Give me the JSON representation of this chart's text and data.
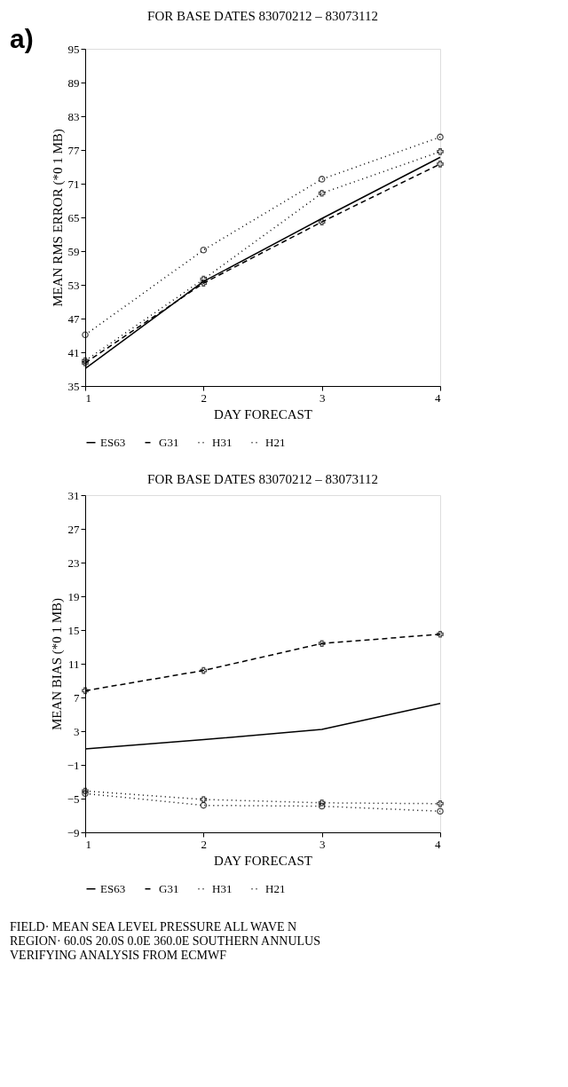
{
  "chart_data": [
    {
      "type": "line",
      "title": "FOR BASE DATES 83070212 – 83073112",
      "xlabel": "DAY FORECAST",
      "ylabel": "MEAN RMS ERROR (*0 1 MB)",
      "x": [
        1,
        2,
        3,
        4
      ],
      "xlim": [
        1,
        4
      ],
      "xticks": [
        1,
        2,
        3,
        4
      ],
      "ylim": [
        35,
        95
      ],
      "yticks": [
        35,
        41,
        47,
        53,
        59,
        65,
        71,
        77,
        83,
        89,
        95
      ],
      "grid": false,
      "legend": "bottom",
      "annotations": [
        "a)"
      ],
      "series": [
        {
          "name": "ES63",
          "color": "#000000",
          "line_style": "solid",
          "marker": "none",
          "values": [
            38.1,
            53.6,
            64.8,
            75.7
          ]
        },
        {
          "name": "G31",
          "color": "#000000",
          "line_style": "dashed",
          "marker": "cross",
          "values": [
            39.1,
            53.3,
            64.2,
            74.5
          ]
        },
        {
          "name": "H31",
          "color": "#000000",
          "line_style": "dotted",
          "marker": "cross",
          "values": [
            39.5,
            54.0,
            69.3,
            76.7
          ]
        },
        {
          "name": "H21",
          "color": "#000000",
          "line_style": "dotted",
          "marker": "circle",
          "values": [
            44.1,
            59.2,
            71.8,
            79.3
          ]
        }
      ]
    },
    {
      "type": "line",
      "title": "FOR BASE DATES 83070212 – 83073112",
      "xlabel": "DAY FORECAST",
      "ylabel": "MEAN BIAS (*0 1 MB)",
      "x": [
        1,
        2,
        3,
        4
      ],
      "xlim": [
        1,
        4
      ],
      "xticks": [
        1,
        2,
        3,
        4
      ],
      "ylim": [
        -9,
        31
      ],
      "yticks": [
        -9,
        -5,
        -1,
        3,
        7,
        11,
        15,
        19,
        23,
        27,
        31
      ],
      "grid": false,
      "legend": "bottom",
      "annotations": [
        "FIELD· MEAN SEA LEVEL PRESSURE    ALL WAVE N",
        "REGION· 60.0S 20.0S 0.0E 360.0E SOUTHERN ANNULUS",
        "VERIFYING ANALYSIS FROM ECMWF"
      ],
      "series": [
        {
          "name": "ES63",
          "color": "#000000",
          "line_style": "solid",
          "marker": "none",
          "values": [
            0.9,
            2.0,
            3.2,
            6.3
          ]
        },
        {
          "name": "G31",
          "color": "#000000",
          "line_style": "dashed",
          "marker": "cross",
          "values": [
            7.8,
            10.2,
            13.4,
            14.5
          ]
        },
        {
          "name": "H31",
          "color": "#000000",
          "line_style": "dotted",
          "marker": "cross",
          "values": [
            -4.1,
            -5.1,
            -5.5,
            -5.6
          ]
        },
        {
          "name": "H21",
          "color": "#000000",
          "line_style": "dotted",
          "marker": "circle",
          "values": [
            -4.4,
            -5.8,
            -5.9,
            -6.5
          ]
        }
      ]
    }
  ]
}
